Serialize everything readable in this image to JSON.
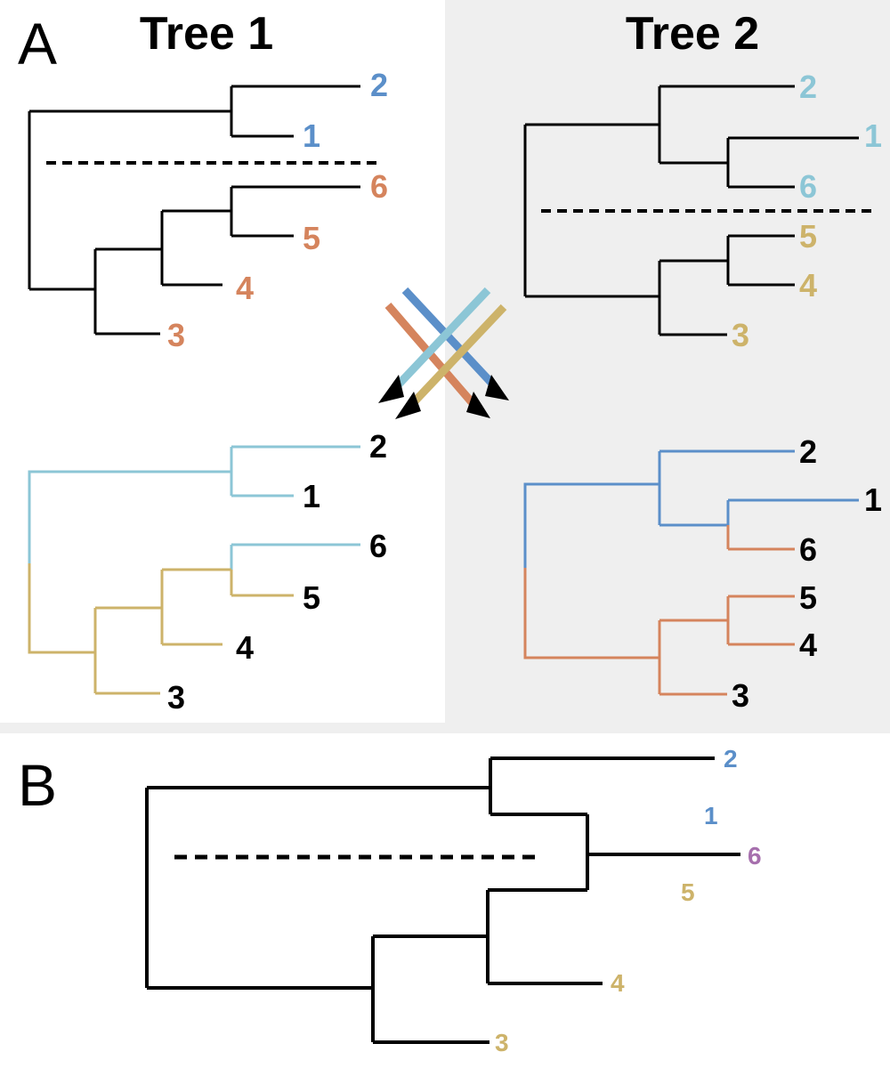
{
  "colors": {
    "blue": "#5b8fc9",
    "lightblue": "#8cc6d6",
    "orange": "#d5845d",
    "gold": "#cdb36a",
    "purple": "#a66fad",
    "black": "#000000",
    "panel_bg": "#efefef"
  },
  "panel_a": {
    "letter": "A",
    "tree1": {
      "title": "Tree 1",
      "leaves": [
        {
          "label": "2",
          "color": "#5b8fc9"
        },
        {
          "label": "1",
          "color": "#5b8fc9"
        },
        {
          "label": "6",
          "color": "#d5845d"
        },
        {
          "label": "5",
          "color": "#d5845d"
        },
        {
          "label": "4",
          "color": "#d5845d"
        },
        {
          "label": "3",
          "color": "#d5845d"
        }
      ]
    },
    "tree2": {
      "title": "Tree 2",
      "leaves": [
        {
          "label": "2",
          "color": "#8cc6d6"
        },
        {
          "label": "1",
          "color": "#8cc6d6"
        },
        {
          "label": "6",
          "color": "#8cc6d6"
        },
        {
          "label": "5",
          "color": "#cdb36a"
        },
        {
          "label": "4",
          "color": "#cdb36a"
        },
        {
          "label": "3",
          "color": "#cdb36a"
        }
      ]
    },
    "recombined_left": {
      "leaves": [
        {
          "label": "2",
          "color": "#000000"
        },
        {
          "label": "1",
          "color": "#000000"
        },
        {
          "label": "6",
          "color": "#000000"
        },
        {
          "label": "5",
          "color": "#000000"
        },
        {
          "label": "4",
          "color": "#000000"
        },
        {
          "label": "3",
          "color": "#000000"
        }
      ]
    },
    "recombined_right": {
      "leaves": [
        {
          "label": "2",
          "color": "#000000"
        },
        {
          "label": "1",
          "color": "#000000"
        },
        {
          "label": "6",
          "color": "#000000"
        },
        {
          "label": "5",
          "color": "#000000"
        },
        {
          "label": "4",
          "color": "#000000"
        },
        {
          "label": "3",
          "color": "#000000"
        }
      ]
    }
  },
  "panel_b": {
    "letter": "B",
    "leaves": [
      {
        "label": "2",
        "color": "#5b8fc9"
      },
      {
        "label": "1",
        "color": "#5b8fc9"
      },
      {
        "label": "6",
        "color": "#a66fad"
      },
      {
        "label": "5",
        "color": "#cdb36a"
      },
      {
        "label": "4",
        "color": "#cdb36a"
      },
      {
        "label": "3",
        "color": "#cdb36a"
      }
    ]
  }
}
